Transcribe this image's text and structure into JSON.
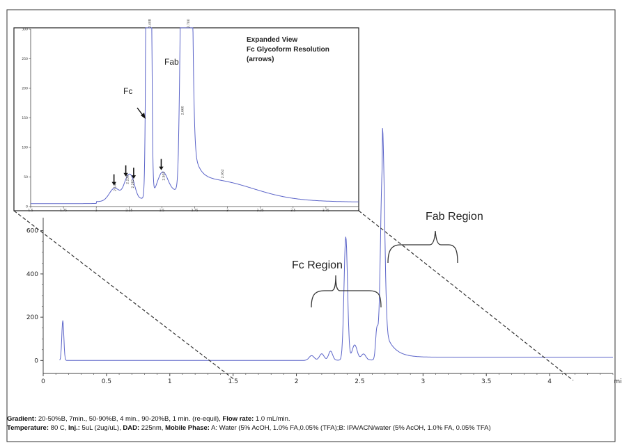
{
  "chart_data": [
    {
      "type": "line",
      "role": "main",
      "xlim": [
        0,
        4.5
      ],
      "ylim": [
        -60,
        660
      ],
      "x_ticks": [
        {
          "v": 0,
          "label": "0"
        },
        {
          "v": 0.5,
          "label": "0.5"
        },
        {
          "v": 1,
          "label": "1"
        },
        {
          "v": 1.5,
          "label": "1.5"
        },
        {
          "v": 2,
          "label": "2"
        },
        {
          "v": 2.5,
          "label": "2.5"
        },
        {
          "v": 3,
          "label": "3"
        },
        {
          "v": 3.5,
          "label": "3.5"
        },
        {
          "v": 4,
          "label": "4"
        }
      ],
      "x_unit": "mi",
      "y_ticks": [
        {
          "v": 0,
          "label": "0"
        },
        {
          "v": 200,
          "label": "200"
        },
        {
          "v": 400,
          "label": "400"
        },
        {
          "v": 600,
          "label": "600"
        }
      ],
      "baseline": 0,
      "tail_level": 15,
      "peaks": [
        {
          "x": 0.155,
          "h": 185,
          "w": 0.008
        },
        {
          "x": 2.12,
          "h": 22,
          "w": 0.02
        },
        {
          "x": 2.2,
          "h": 30,
          "w": 0.018
        },
        {
          "x": 2.27,
          "h": 42,
          "w": 0.016
        },
        {
          "x": 2.39,
          "h": 570,
          "w": 0.014
        },
        {
          "x": 2.46,
          "h": 70,
          "w": 0.02
        },
        {
          "x": 2.53,
          "h": 28,
          "w": 0.018
        },
        {
          "x": 2.635,
          "h": 135,
          "w": 0.01
        },
        {
          "x": 2.68,
          "h": 900,
          "w": 0.016
        }
      ],
      "annotations": [
        "Fc Region",
        "Fab Region"
      ]
    },
    {
      "type": "line",
      "role": "inset",
      "title_lines": [
        "Expanded View",
        "Fc Glycoform Resolution",
        "(arrows)"
      ],
      "xlim": [
        1.5,
        4.0
      ],
      "ylim": [
        0,
        300
      ],
      "x_ticks": [
        {
          "v": 1.5,
          "label": "1.5"
        },
        {
          "v": 1.75,
          "label": "1.75"
        },
        {
          "v": 2.0,
          "label": "2"
        },
        {
          "v": 2.25,
          "label": "2.25"
        },
        {
          "v": 2.5,
          "label": "2.5"
        },
        {
          "v": 2.75,
          "label": "2.75"
        },
        {
          "v": 3.0,
          "label": "3"
        },
        {
          "v": 3.25,
          "label": "3.25"
        },
        {
          "v": 3.5,
          "label": "3.5"
        },
        {
          "v": 3.75,
          "label": "3.75"
        },
        {
          "v": 4.0,
          "label": "4"
        }
      ],
      "y_ticks": [
        {
          "v": 0,
          "label": "0"
        },
        {
          "v": 50,
          "label": "50"
        },
        {
          "v": 100,
          "label": "100"
        },
        {
          "v": 150,
          "label": "150"
        },
        {
          "v": 200,
          "label": "200"
        },
        {
          "v": 250,
          "label": "250"
        },
        {
          "v": 300,
          "label": "300"
        }
      ],
      "baseline": 5,
      "peaks": [
        {
          "x": 2.14,
          "h": 22,
          "w": 0.04
        },
        {
          "x": 2.235,
          "h": 32,
          "w": 0.028
        },
        {
          "x": 2.275,
          "h": 26,
          "w": 0.025
        },
        {
          "x": 2.4,
          "h": 2000,
          "w": 0.012
        },
        {
          "x": 2.505,
          "h": 38,
          "w": 0.04
        },
        {
          "x": 2.645,
          "h": 145,
          "w": 0.012
        },
        {
          "x": 2.69,
          "h": 2000,
          "w": 0.022
        },
        {
          "x": 2.9,
          "h": 30,
          "w": 0.3
        }
      ],
      "peak_labels": [
        {
          "x": 2.14,
          "y": 26,
          "text": "2.144"
        },
        {
          "x": 2.235,
          "y": 38,
          "text": "2.238"
        },
        {
          "x": 2.275,
          "y": 31,
          "text": "2.282"
        },
        {
          "x": 2.405,
          "y": 302,
          "text": "2.408"
        },
        {
          "x": 2.51,
          "y": 44,
          "text": "2.509"
        },
        {
          "x": 2.655,
          "y": 155,
          "text": "2.660"
        },
        {
          "x": 2.7,
          "y": 302,
          "text": "2.700"
        },
        {
          "x": 2.96,
          "y": 48,
          "text": "2.952"
        }
      ],
      "arrows_x": [
        2.135,
        2.225,
        2.285,
        2.495
      ],
      "labels": {
        "fc": "Fc",
        "fab": "Fab"
      }
    }
  ],
  "caption": {
    "gradient_label": "Gradient:",
    "gradient_text": " 20-50%B, 7min., 50-90%B, 4 min., 90-20%B, 1 min. (re-equil), ",
    "flow_label": "Flow rate:",
    "flow_text": " 1.0 mL/min.",
    "temp_label": "Temperature:",
    "temp_text": " 80 C, ",
    "inj_label": "Inj.:",
    "inj_text": " 5uL (2ug/uL), ",
    "dad_label": "DAD:",
    "dad_text": " 225nm, ",
    "mobile_label": "Mobile Phase:",
    "mobile_text": " A: Water (5% AcOH, 1.0% FA,0.05% (TFA);B: IPA/ACN/water (5% AcOH, 1.0% FA, 0.05% TFA)"
  },
  "colors": {
    "trace": "#5a63c8",
    "axis": "#444444",
    "frame": "#333333",
    "dash": "#333333"
  }
}
